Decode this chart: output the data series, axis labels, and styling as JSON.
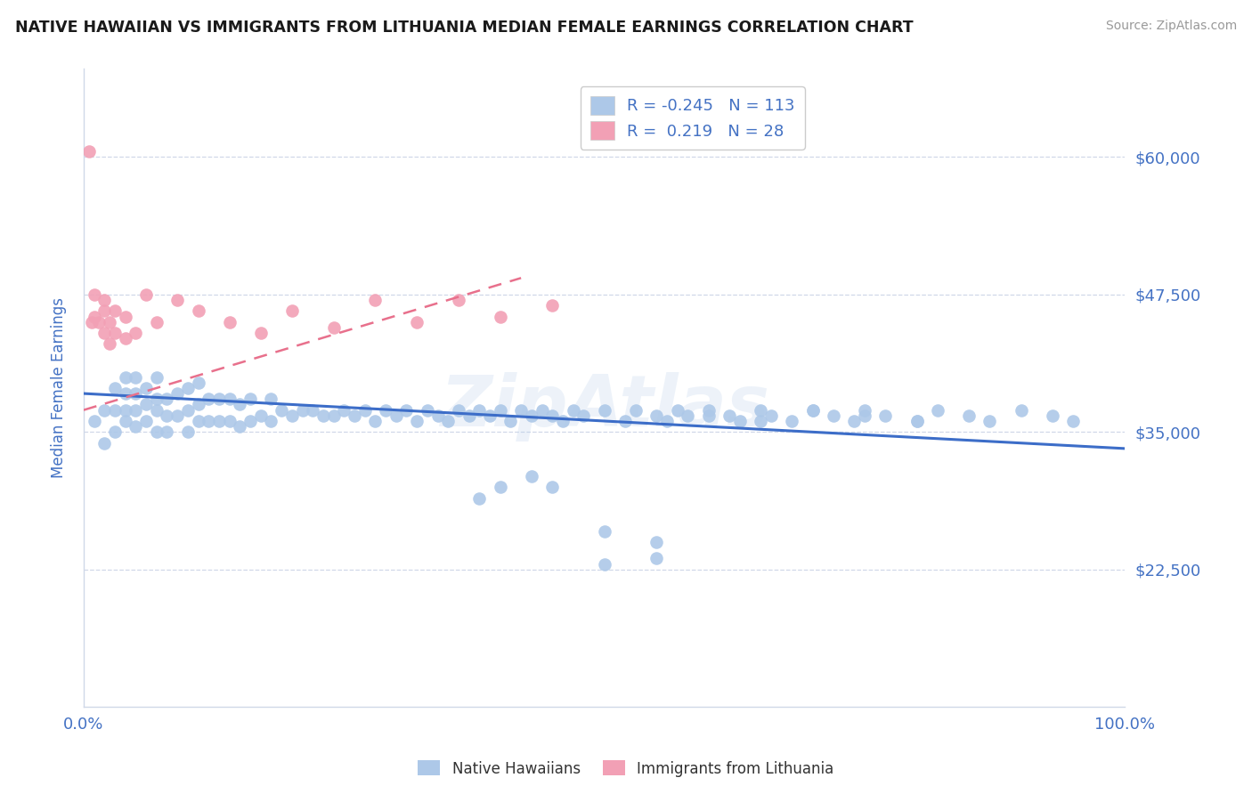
{
  "title": "NATIVE HAWAIIAN VS IMMIGRANTS FROM LITHUANIA MEDIAN FEMALE EARNINGS CORRELATION CHART",
  "source": "Source: ZipAtlas.com",
  "ylabel": "Median Female Earnings",
  "xlim": [
    0.0,
    1.0
  ],
  "ylim": [
    10000,
    68000
  ],
  "yticks": [
    22500,
    35000,
    47500,
    60000
  ],
  "ytick_labels": [
    "$22,500",
    "$35,000",
    "$47,500",
    "$60,000"
  ],
  "xtick_labels": [
    "0.0%",
    "100.0%"
  ],
  "blue_R": -0.245,
  "blue_N": 113,
  "pink_R": 0.219,
  "pink_N": 28,
  "blue_color": "#adc8e8",
  "pink_color": "#f2a0b5",
  "blue_line_color": "#3c6dc8",
  "pink_line_color": "#e8708c",
  "title_color": "#1a1a1a",
  "axis_label_color": "#4472c4",
  "tick_label_color": "#4472c4",
  "legend_r_color": "#4472c4",
  "watermark": "ZipAtlas",
  "background_color": "#ffffff",
  "grid_color": "#d0d8e8",
  "blue_scatter_x": [
    0.01,
    0.02,
    0.02,
    0.03,
    0.03,
    0.03,
    0.04,
    0.04,
    0.04,
    0.04,
    0.05,
    0.05,
    0.05,
    0.05,
    0.06,
    0.06,
    0.06,
    0.07,
    0.07,
    0.07,
    0.07,
    0.08,
    0.08,
    0.08,
    0.09,
    0.09,
    0.1,
    0.1,
    0.1,
    0.11,
    0.11,
    0.11,
    0.12,
    0.12,
    0.13,
    0.13,
    0.14,
    0.14,
    0.15,
    0.15,
    0.16,
    0.16,
    0.17,
    0.18,
    0.18,
    0.19,
    0.2,
    0.21,
    0.22,
    0.23,
    0.24,
    0.25,
    0.26,
    0.27,
    0.28,
    0.29,
    0.3,
    0.31,
    0.32,
    0.33,
    0.34,
    0.35,
    0.36,
    0.37,
    0.38,
    0.39,
    0.4,
    0.41,
    0.42,
    0.43,
    0.44,
    0.45,
    0.46,
    0.47,
    0.48,
    0.5,
    0.52,
    0.53,
    0.55,
    0.56,
    0.57,
    0.58,
    0.6,
    0.62,
    0.63,
    0.65,
    0.66,
    0.68,
    0.7,
    0.72,
    0.74,
    0.75,
    0.77,
    0.8,
    0.82,
    0.85,
    0.87,
    0.9,
    0.93,
    0.95,
    0.4,
    0.43,
    0.5,
    0.55,
    0.6,
    0.65,
    0.7,
    0.75,
    0.8,
    0.38,
    0.45,
    0.5,
    0.55
  ],
  "blue_scatter_y": [
    36000,
    34000,
    37000,
    35000,
    37000,
    39000,
    36000,
    37000,
    38500,
    40000,
    35500,
    37000,
    38500,
    40000,
    36000,
    37500,
    39000,
    35000,
    37000,
    38000,
    40000,
    35000,
    36500,
    38000,
    36500,
    38500,
    35000,
    37000,
    39000,
    36000,
    37500,
    39500,
    36000,
    38000,
    36000,
    38000,
    36000,
    38000,
    35500,
    37500,
    36000,
    38000,
    36500,
    36000,
    38000,
    37000,
    36500,
    37000,
    37000,
    36500,
    36500,
    37000,
    36500,
    37000,
    36000,
    37000,
    36500,
    37000,
    36000,
    37000,
    36500,
    36000,
    37000,
    36500,
    37000,
    36500,
    37000,
    36000,
    37000,
    36500,
    37000,
    36500,
    36000,
    37000,
    36500,
    37000,
    36000,
    37000,
    36500,
    36000,
    37000,
    36500,
    37000,
    36500,
    36000,
    37000,
    36500,
    36000,
    37000,
    36500,
    36000,
    37000,
    36500,
    36000,
    37000,
    36500,
    36000,
    37000,
    36500,
    36000,
    30000,
    31000,
    23000,
    23500,
    36500,
    36000,
    37000,
    36500,
    36000,
    29000,
    30000,
    26000,
    25000
  ],
  "pink_scatter_x": [
    0.005,
    0.008,
    0.01,
    0.01,
    0.015,
    0.02,
    0.02,
    0.02,
    0.025,
    0.025,
    0.03,
    0.03,
    0.04,
    0.04,
    0.05,
    0.06,
    0.07,
    0.09,
    0.11,
    0.14,
    0.17,
    0.2,
    0.24,
    0.28,
    0.32,
    0.36,
    0.4,
    0.45
  ],
  "pink_scatter_y": [
    60500,
    45000,
    45500,
    47500,
    45000,
    44000,
    46000,
    47000,
    43000,
    45000,
    44000,
    46000,
    43500,
    45500,
    44000,
    47500,
    45000,
    47000,
    46000,
    45000,
    44000,
    46000,
    44500,
    47000,
    45000,
    47000,
    45500,
    46500
  ],
  "blue_trend_x0": 0.0,
  "blue_trend_y0": 38500,
  "blue_trend_x1": 1.0,
  "blue_trend_y1": 33500,
  "pink_trend_x0": 0.0,
  "pink_trend_y0": 37000,
  "pink_trend_x1": 0.42,
  "pink_trend_y1": 49000
}
